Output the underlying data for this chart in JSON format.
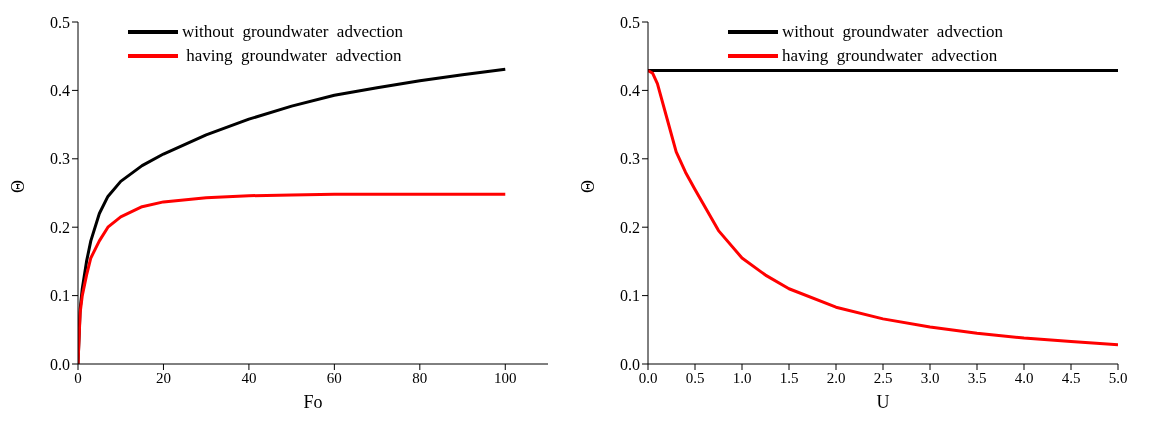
{
  "chart_data": [
    {
      "type": "line",
      "xlabel": "Fo",
      "ylabel": "Θ",
      "xlim": [
        0,
        110
      ],
      "xticks": [
        0,
        20,
        40,
        60,
        80,
        100
      ],
      "ylim": [
        0,
        0.5
      ],
      "yticks": [
        {
          "value": 0,
          "label": "0.0"
        },
        0.1,
        0.2,
        0.3,
        0.4,
        0.5
      ],
      "legend": "top",
      "grid": false,
      "marker": "none",
      "line_style": "solid",
      "series": [
        {
          "name": "without  groundwater  advection",
          "color": "#000000",
          "x": [
            0,
            0.5,
            1,
            2,
            3,
            5,
            7,
            10,
            15,
            20,
            30,
            40,
            50,
            60,
            70,
            80,
            90,
            100
          ],
          "values": [
            0,
            0.08,
            0.11,
            0.15,
            0.18,
            0.22,
            0.245,
            0.267,
            0.29,
            0.307,
            0.335,
            0.358,
            0.377,
            0.393,
            0.404,
            0.414,
            0.423,
            0.431
          ]
        },
        {
          "name": " having  groundwater  advection",
          "color": "#ff0000",
          "x": [
            0,
            0.5,
            1,
            2,
            3,
            5,
            7,
            10,
            15,
            20,
            30,
            40,
            50,
            60,
            70,
            80,
            90,
            100
          ],
          "values": [
            0,
            0.075,
            0.1,
            0.13,
            0.155,
            0.18,
            0.2,
            0.215,
            0.23,
            0.237,
            0.243,
            0.246,
            0.247,
            0.248,
            0.248,
            0.248,
            0.248,
            0.248
          ]
        }
      ]
    },
    {
      "type": "line",
      "xlabel": "U",
      "ylabel": "Θ",
      "xlim": [
        0,
        5
      ],
      "xticks": [
        {
          "value": 0,
          "label": "0.0"
        },
        0.5,
        {
          "value": 1,
          "label": "1.0"
        },
        1.5,
        {
          "value": 2,
          "label": "2.0"
        },
        2.5,
        {
          "value": 3,
          "label": "3.0"
        },
        3.5,
        {
          "value": 4,
          "label": "4.0"
        },
        4.5,
        {
          "value": 5,
          "label": "5.0"
        }
      ],
      "ylim": [
        0,
        0.5
      ],
      "yticks": [
        {
          "value": 0,
          "label": "0.0"
        },
        0.1,
        0.2,
        0.3,
        0.4,
        0.5
      ],
      "legend": "top right",
      "grid": false,
      "marker": "none",
      "line_style": "solid",
      "series": [
        {
          "name": "without  groundwater  advection",
          "color": "#000000",
          "x": [
            0,
            5
          ],
          "values": [
            0.429,
            0.429
          ]
        },
        {
          "name": "having  groundwater  advection",
          "color": "#ff0000",
          "x": [
            0,
            0.05,
            0.1,
            0.2,
            0.3,
            0.4,
            0.5,
            0.75,
            1,
            1.25,
            1.5,
            2,
            2.5,
            3,
            3.5,
            4,
            4.5,
            5
          ],
          "values": [
            0.429,
            0.425,
            0.41,
            0.36,
            0.31,
            0.28,
            0.255,
            0.195,
            0.155,
            0.13,
            0.11,
            0.083,
            0.066,
            0.054,
            0.045,
            0.038,
            0.033,
            0.028
          ]
        }
      ]
    }
  ]
}
